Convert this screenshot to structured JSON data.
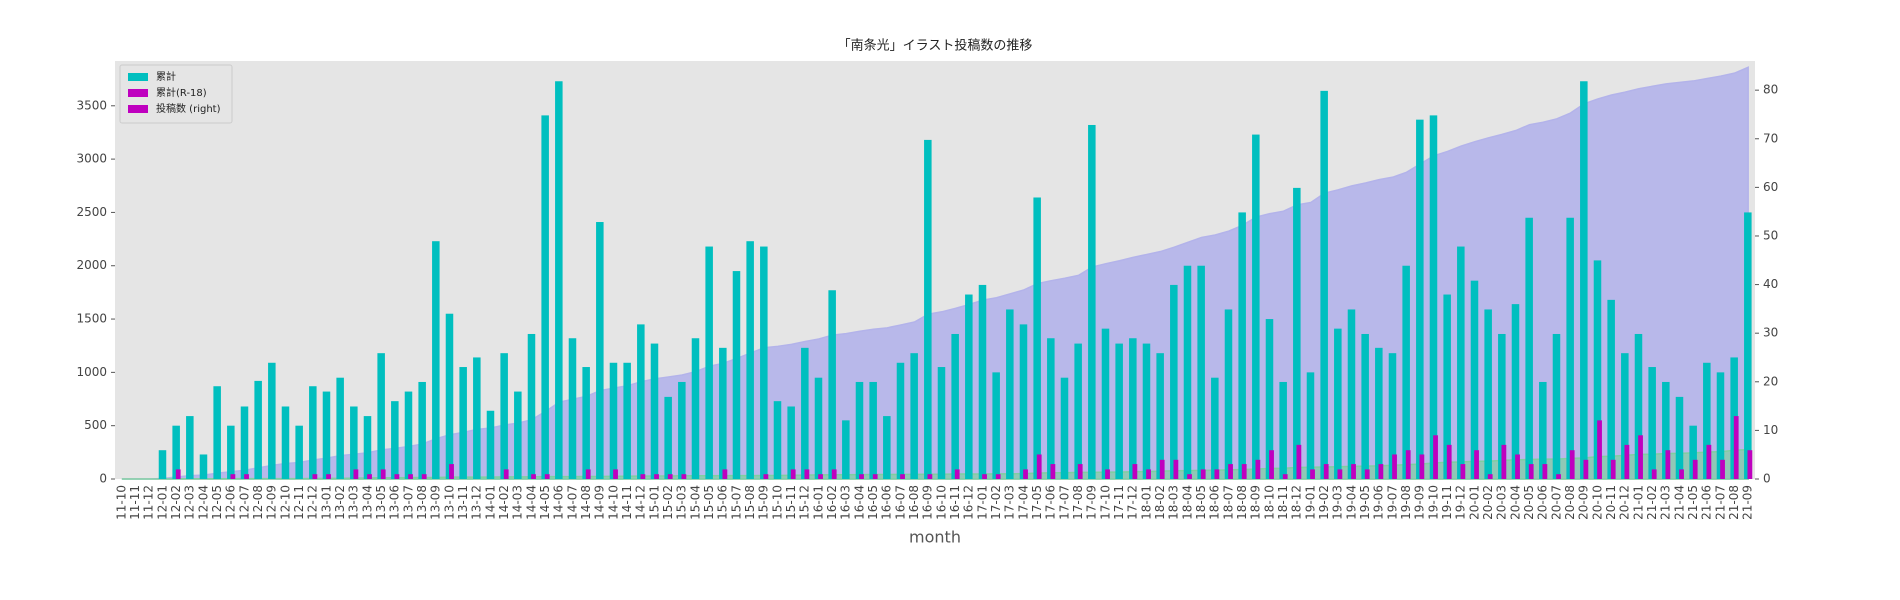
{
  "chart_data": {
    "type": "bar",
    "title": "「南条光」イラスト投稿数の推移",
    "xlabel": "month",
    "categories": [
      "11-10",
      "11-11",
      "11-12",
      "12-01",
      "12-02",
      "12-03",
      "12-04",
      "12-05",
      "12-06",
      "12-07",
      "12-08",
      "12-09",
      "12-10",
      "12-11",
      "12-12",
      "13-01",
      "13-02",
      "13-03",
      "13-04",
      "13-05",
      "13-06",
      "13-07",
      "13-08",
      "13-09",
      "13-10",
      "13-11",
      "13-12",
      "14-01",
      "14-02",
      "14-03",
      "14-04",
      "14-05",
      "14-06",
      "14-07",
      "14-08",
      "14-09",
      "14-10",
      "14-11",
      "14-12",
      "15-01",
      "15-02",
      "15-03",
      "15-04",
      "15-05",
      "15-06",
      "15-07",
      "15-08",
      "15-09",
      "15-10",
      "15-11",
      "15-12",
      "16-01",
      "16-02",
      "16-03",
      "16-04",
      "16-05",
      "16-06",
      "16-07",
      "16-08",
      "16-09",
      "16-10",
      "16-11",
      "16-12",
      "17-01",
      "17-02",
      "17-03",
      "17-04",
      "17-05",
      "17-06",
      "17-07",
      "17-08",
      "17-09",
      "17-10",
      "17-11",
      "17-12",
      "18-01",
      "18-02",
      "18-03",
      "18-04",
      "18-05",
      "18-06",
      "18-07",
      "18-08",
      "18-09",
      "18-10",
      "18-11",
      "18-12",
      "19-01",
      "19-02",
      "19-03",
      "19-04",
      "19-05",
      "19-06",
      "19-07",
      "19-08",
      "19-09",
      "19-10",
      "19-11",
      "19-12",
      "20-01",
      "20-02",
      "20-03",
      "20-04",
      "20-05",
      "20-06",
      "20-07",
      "20-08",
      "20-09",
      "20-10",
      "20-11",
      "20-12",
      "21-01",
      "21-02",
      "21-03",
      "21-04",
      "21-05",
      "21-06",
      "21-07",
      "21-08",
      "21-09"
    ],
    "series": [
      {
        "name": "累計",
        "type": "bar",
        "color": "#00bfbf",
        "values": [
          0,
          0,
          0,
          270,
          500,
          590,
          230,
          870,
          500,
          680,
          920,
          1090,
          680,
          500,
          870,
          820,
          950,
          680,
          590,
          1180,
          730,
          820,
          910,
          2230,
          1550,
          1050,
          1140,
          640,
          1180,
          820,
          1360,
          3410,
          3730,
          1320,
          1050,
          2410,
          1090,
          1090,
          1450,
          1270,
          770,
          910,
          1320,
          2180,
          1230,
          1950,
          2230,
          2180,
          730,
          680,
          1230,
          950,
          1770,
          550,
          910,
          910,
          590,
          1090,
          1180,
          3180,
          1050,
          1360,
          1730,
          1820,
          1000,
          1590,
          1450,
          2640,
          1320,
          950,
          1270,
          3320,
          1410,
          1270,
          1320,
          1270,
          1180,
          1820,
          2000,
          2000,
          950,
          1590,
          2500,
          3230,
          1500,
          910,
          2730,
          1000,
          3640,
          1410,
          1590,
          1360,
          1230,
          1180,
          2000,
          3370,
          3410,
          1730,
          2180,
          1860,
          1590,
          1360,
          1640,
          2450,
          910,
          1360,
          2450,
          3730,
          2050,
          1680,
          1180,
          1360,
          1050,
          910,
          770,
          500,
          1090,
          1000,
          1140,
          2500
        ]
      },
      {
        "name": "累計(R-18)",
        "type": "bar",
        "color": "#bf00bf",
        "values": [
          0,
          0,
          0,
          0,
          90,
          0,
          0,
          0,
          45,
          45,
          0,
          0,
          0,
          0,
          45,
          45,
          0,
          90,
          45,
          90,
          45,
          45,
          45,
          0,
          140,
          0,
          0,
          0,
          90,
          0,
          45,
          45,
          0,
          0,
          90,
          0,
          90,
          0,
          45,
          45,
          45,
          45,
          0,
          0,
          90,
          0,
          0,
          45,
          0,
          90,
          90,
          45,
          90,
          0,
          45,
          45,
          0,
          45,
          0,
          45,
          0,
          90,
          0,
          45,
          45,
          0,
          90,
          230,
          140,
          0,
          140,
          0,
          90,
          0,
          140,
          90,
          180,
          180,
          45,
          90,
          90,
          140,
          140,
          180,
          270,
          45,
          320,
          90,
          140,
          90,
          140,
          90,
          140,
          230,
          270,
          230,
          410,
          320,
          140,
          270,
          45,
          320,
          230,
          140,
          140,
          45,
          270,
          180,
          550,
          180,
          320,
          410,
          90,
          270,
          90,
          180,
          320,
          180,
          590,
          270
        ]
      },
      {
        "name": "投稿数 (right)",
        "type": "area",
        "axis": "y2",
        "color": "#bf00bf",
        "fill": "#b3b3ea",
        "values": [
          0,
          0,
          0,
          0.1,
          0.4,
          0.7,
          0.8,
          1.2,
          1.5,
          1.8,
          2.3,
          2.8,
          3.2,
          3.4,
          3.9,
          4.3,
          4.8,
          5.1,
          5.4,
          6.0,
          6.3,
          6.7,
          7.2,
          8.3,
          9.1,
          9.6,
          10.2,
          10.5,
          11.1,
          11.5,
          12.2,
          13.9,
          15.8,
          16.4,
          17.0,
          18.2,
          18.7,
          19.2,
          20.0,
          20.6,
          21.0,
          21.4,
          22.1,
          23.2,
          23.8,
          24.8,
          25.9,
          27.0,
          27.3,
          27.7,
          28.3,
          28.8,
          29.6,
          29.9,
          30.4,
          30.8,
          31.1,
          31.7,
          32.3,
          33.9,
          34.4,
          35.1,
          35.9,
          36.8,
          37.3,
          38.1,
          38.9,
          40.2,
          40.8,
          41.3,
          41.9,
          43.6,
          44.3,
          44.9,
          45.6,
          46.2,
          46.8,
          47.7,
          48.7,
          49.7,
          50.2,
          51.0,
          52.2,
          53.9,
          54.6,
          55.1,
          56.4,
          56.9,
          58.8,
          59.5,
          60.3,
          60.9,
          61.6,
          62.1,
          63.1,
          64.8,
          66.5,
          67.4,
          68.5,
          69.4,
          70.2,
          70.9,
          71.7,
          72.9,
          73.4,
          74.1,
          75.3,
          77.2,
          78.2,
          79.0,
          79.6,
          80.3,
          80.8,
          81.3,
          81.6,
          81.9,
          82.4,
          82.9,
          83.5,
          84.7
        ]
      },
      {
        "type": "area",
        "axis": "y2",
        "fill": "#7fcf9f",
        "values": [
          0,
          0,
          0,
          0,
          0.05,
          0.05,
          0.05,
          0.05,
          0.07,
          0.09,
          0.09,
          0.09,
          0.09,
          0.09,
          0.11,
          0.14,
          0.14,
          0.18,
          0.2,
          0.25,
          0.27,
          0.29,
          0.32,
          0.32,
          0.39,
          0.39,
          0.39,
          0.39,
          0.43,
          0.43,
          0.45,
          0.48,
          0.48,
          0.48,
          0.52,
          0.52,
          0.57,
          0.57,
          0.59,
          0.61,
          0.63,
          0.66,
          0.66,
          0.66,
          0.7,
          0.7,
          0.7,
          0.72,
          0.72,
          0.77,
          0.81,
          0.84,
          0.88,
          0.88,
          0.9,
          0.93,
          0.93,
          0.95,
          0.95,
          0.97,
          0.97,
          1.02,
          1.02,
          1.04,
          1.06,
          1.06,
          1.11,
          1.22,
          1.29,
          1.29,
          1.36,
          1.36,
          1.41,
          1.41,
          1.48,
          1.52,
          1.61,
          1.7,
          1.72,
          1.77,
          1.81,
          1.88,
          1.95,
          2.04,
          2.18,
          2.2,
          2.36,
          2.41,
          2.48,
          2.52,
          2.59,
          2.64,
          2.71,
          2.82,
          2.96,
          3.07,
          3.28,
          3.44,
          3.51,
          3.64,
          3.66,
          3.82,
          3.94,
          4.01,
          4.08,
          4.1,
          4.24,
          4.33,
          4.6,
          4.69,
          4.85,
          5.06,
          5.1,
          5.24,
          5.28,
          5.37,
          5.53,
          5.62,
          5.92,
          6.05
        ]
      }
    ],
    "ylim": [
      0,
      3920
    ],
    "yticks": [
      0,
      500,
      1000,
      1500,
      2000,
      2500,
      3000,
      3500
    ],
    "y2lim": [
      0,
      86
    ],
    "y2ticks": [
      0,
      10,
      20,
      30,
      40,
      50,
      60,
      70,
      80
    ],
    "grid": false,
    "legend": "upper left"
  }
}
